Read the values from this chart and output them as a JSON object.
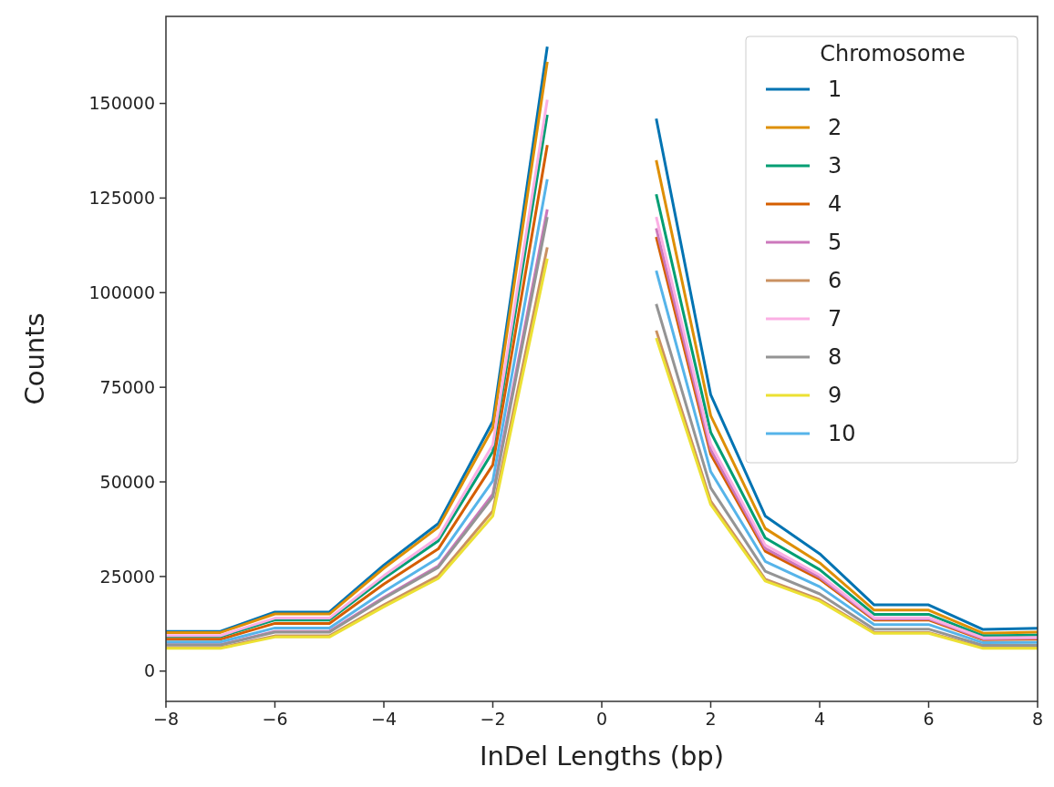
{
  "chart_data": {
    "type": "line",
    "xlabel": "InDel Lengths (bp)",
    "ylabel": "Counts",
    "legend_title": "Chromosome",
    "legend": "top right",
    "grid": false,
    "x": [
      -8,
      -7,
      -6,
      -5,
      -4,
      -3,
      -2,
      -1,
      1,
      2,
      3,
      4,
      5,
      6,
      7,
      8
    ],
    "xlim": [
      -8,
      8
    ],
    "xticks": [
      {
        "value": -8,
        "label": "−8"
      },
      {
        "value": -6,
        "label": "−6"
      },
      {
        "value": -4,
        "label": "−4"
      },
      {
        "value": -2,
        "label": "−2"
      },
      0,
      2,
      4,
      6,
      8
    ],
    "ylim": [
      -8000,
      173000
    ],
    "yticks": [
      0,
      25000,
      50000,
      75000,
      100000,
      125000,
      150000
    ],
    "series": [
      {
        "name": "1",
        "color": "#0173b2",
        "values": [
          10500,
          10500,
          15600,
          15600,
          28000,
          39000,
          66000,
          165000,
          146000,
          73000,
          41000,
          31000,
          17500,
          17500,
          11000,
          11300
        ]
      },
      {
        "name": "2",
        "color": "#de8f05",
        "values": [
          10200,
          10200,
          15100,
          15100,
          27200,
          38000,
          64200,
          161000,
          135000,
          67500,
          37700,
          28600,
          16100,
          16100,
          10000,
          10300
        ]
      },
      {
        "name": "3",
        "color": "#029e73",
        "values": [
          9100,
          9100,
          13500,
          13500,
          24500,
          34400,
          58000,
          147000,
          126000,
          63100,
          35200,
          26800,
          15000,
          15000,
          9300,
          9500
        ]
      },
      {
        "name": "4",
        "color": "#d55e00",
        "values": [
          8400,
          8400,
          12600,
          12600,
          23000,
          32300,
          54500,
          139000,
          114700,
          57300,
          31700,
          24300,
          13500,
          13500,
          8300,
          8400
        ]
      },
      {
        "name": "5",
        "color": "#cc78bc",
        "values": [
          7000,
          7000,
          10500,
          10500,
          19500,
          27800,
          46800,
          122000,
          117000,
          58500,
          32400,
          24800,
          13800,
          13800,
          8500,
          8700
        ]
      },
      {
        "name": "6",
        "color": "#ca9161",
        "values": [
          6200,
          6200,
          9300,
          9300,
          17500,
          25200,
          42300,
          112000,
          90000,
          44900,
          24300,
          18900,
          10200,
          10200,
          6200,
          6200
        ]
      },
      {
        "name": "7",
        "color": "#fbafe4",
        "values": [
          9400,
          9400,
          14000,
          14000,
          25200,
          35400,
          59800,
          151000,
          120000,
          60000,
          33300,
          25400,
          14100,
          14100,
          8800,
          8900
        ]
      },
      {
        "name": "8",
        "color": "#949494",
        "values": [
          6900,
          6900,
          10300,
          10300,
          19200,
          27400,
          46000,
          120000,
          97000,
          48400,
          26400,
          20400,
          11100,
          11100,
          6800,
          6800
        ]
      },
      {
        "name": "9",
        "color": "#ece133",
        "values": [
          6000,
          6000,
          9000,
          9000,
          17000,
          24500,
          41000,
          109000,
          88000,
          44000,
          23800,
          18500,
          10000,
          10000,
          6000,
          6000
        ]
      },
      {
        "name": "10",
        "color": "#56b4e9",
        "values": [
          7700,
          7700,
          11400,
          11400,
          21000,
          29900,
          50300,
          130000,
          105800,
          52700,
          29000,
          22300,
          12300,
          12300,
          7500,
          7600
        ]
      }
    ]
  }
}
